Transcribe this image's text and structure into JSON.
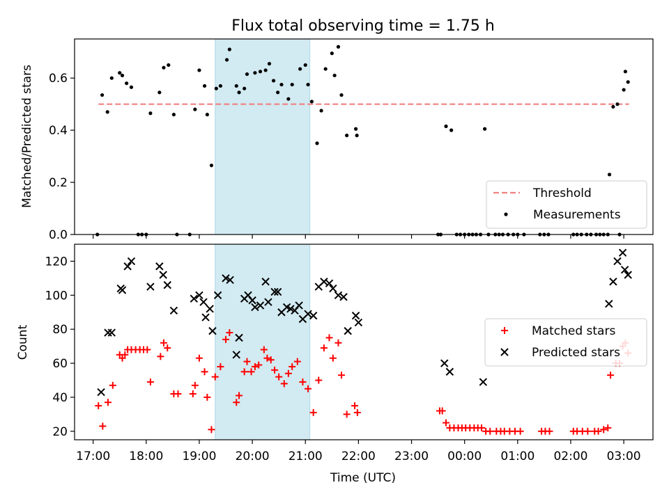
{
  "title": "Flux total observing time = 1.75 h",
  "xlabel": "Time (UTC)",
  "x_ticks": [
    "17:00",
    "18:00",
    "19:00",
    "20:00",
    "21:00",
    "22:00",
    "23:00",
    "00:00",
    "01:00",
    "02:00",
    "03:00"
  ],
  "shade_color": "#add8e6",
  "chart_data": [
    {
      "type": "scatter",
      "ylabel": "Matched/Predicted stars",
      "ylim": [
        0,
        0.75
      ],
      "y_ticks": [
        "0.0",
        "0.2",
        "0.4",
        "0.6"
      ],
      "x_unit": "hours since 17:00 UTC",
      "xlim": [
        -0.35,
        10.55
      ],
      "shaded_interval": [
        "19:18",
        "21:05"
      ],
      "threshold": {
        "name": "Threshold",
        "y": 0.5,
        "x_range": [
          0.1,
          10.1
        ],
        "color": "#f08080",
        "style": "dashed"
      },
      "legend": {
        "placement": "lower right",
        "entries": [
          "Threshold",
          "Measurements"
        ]
      },
      "series": [
        {
          "name": "Measurements",
          "color": "#000000",
          "marker": "dot",
          "points": [
            [
              0.08,
              0.0
            ],
            [
              0.17,
              0.535
            ],
            [
              0.27,
              0.47
            ],
            [
              0.35,
              0.6
            ],
            [
              0.5,
              0.62
            ],
            [
              0.55,
              0.61
            ],
            [
              0.63,
              0.58
            ],
            [
              0.72,
              0.565
            ],
            [
              0.85,
              0.0
            ],
            [
              0.92,
              0.0
            ],
            [
              1.0,
              0.0
            ],
            [
              1.08,
              0.465
            ],
            [
              1.25,
              0.545
            ],
            [
              1.33,
              0.64
            ],
            [
              1.42,
              0.65
            ],
            [
              1.52,
              0.46
            ],
            [
              1.58,
              0.0
            ],
            [
              1.82,
              0.0
            ],
            [
              1.92,
              0.48
            ],
            [
              2.0,
              0.63
            ],
            [
              2.1,
              0.57
            ],
            [
              2.15,
              0.46
            ],
            [
              2.23,
              0.265
            ],
            [
              2.32,
              0.56
            ],
            [
              2.4,
              0.57
            ],
            [
              2.52,
              0.67
            ],
            [
              2.57,
              0.71
            ],
            [
              2.7,
              0.57
            ],
            [
              2.75,
              0.545
            ],
            [
              2.85,
              0.56
            ],
            [
              2.9,
              0.615
            ],
            [
              3.05,
              0.62
            ],
            [
              3.15,
              0.625
            ],
            [
              3.25,
              0.63
            ],
            [
              3.32,
              0.655
            ],
            [
              3.4,
              0.59
            ],
            [
              3.48,
              0.545
            ],
            [
              3.55,
              0.575
            ],
            [
              3.68,
              0.52
            ],
            [
              3.75,
              0.575
            ],
            [
              3.9,
              0.635
            ],
            [
              4.0,
              0.65
            ],
            [
              4.05,
              0.575
            ],
            [
              4.12,
              0.51
            ],
            [
              4.22,
              0.35
            ],
            [
              4.3,
              0.475
            ],
            [
              4.38,
              0.635
            ],
            [
              4.5,
              0.695
            ],
            [
              4.55,
              0.61
            ],
            [
              4.62,
              0.72
            ],
            [
              4.68,
              0.535
            ],
            [
              4.78,
              0.38
            ],
            [
              4.95,
              0.405
            ],
            [
              4.97,
              0.38
            ],
            [
              6.5,
              0.0
            ],
            [
              6.55,
              0.0
            ],
            [
              6.65,
              0.415
            ],
            [
              6.75,
              0.4
            ],
            [
              6.85,
              0.0
            ],
            [
              6.92,
              0.0
            ],
            [
              7.0,
              0.0
            ],
            [
              7.08,
              0.0
            ],
            [
              7.15,
              0.0
            ],
            [
              7.22,
              0.0
            ],
            [
              7.3,
              0.0
            ],
            [
              7.38,
              0.405
            ],
            [
              7.45,
              0.0
            ],
            [
              7.58,
              0.0
            ],
            [
              7.65,
              0.0
            ],
            [
              7.72,
              0.0
            ],
            [
              7.82,
              0.0
            ],
            [
              7.92,
              0.0
            ],
            [
              8.0,
              0.0
            ],
            [
              8.12,
              0.0
            ],
            [
              8.42,
              0.0
            ],
            [
              8.5,
              0.0
            ],
            [
              8.58,
              0.0
            ],
            [
              9.05,
              0.0
            ],
            [
              9.12,
              0.0
            ],
            [
              9.2,
              0.0
            ],
            [
              9.3,
              0.0
            ],
            [
              9.38,
              0.0
            ],
            [
              9.48,
              0.0
            ],
            [
              9.55,
              0.0
            ],
            [
              9.62,
              0.0
            ],
            [
              9.7,
              0.0
            ],
            [
              9.73,
              0.23
            ],
            [
              9.8,
              0.49
            ],
            [
              9.88,
              0.5
            ],
            [
              9.92,
              0.0
            ],
            [
              10.0,
              0.555
            ],
            [
              10.03,
              0.625
            ],
            [
              10.08,
              0.585
            ]
          ]
        }
      ]
    },
    {
      "type": "scatter",
      "ylabel": "Count",
      "ylim": [
        15,
        130
      ],
      "y_ticks": [
        "20",
        "40",
        "60",
        "80",
        "100",
        "120"
      ],
      "x_unit": "hours since 17:00 UTC",
      "xlim": [
        -0.35,
        10.55
      ],
      "shaded_interval": [
        "19:18",
        "21:05"
      ],
      "legend": {
        "placement": "center right",
        "entries": [
          "Matched stars",
          "Predicted stars"
        ]
      },
      "series": [
        {
          "name": "Matched stars",
          "color": "#ff0000",
          "marker": "plus",
          "points": [
            [
              0.1,
              35
            ],
            [
              0.18,
              23
            ],
            [
              0.28,
              37
            ],
            [
              0.37,
              47
            ],
            [
              0.5,
              65
            ],
            [
              0.55,
              63
            ],
            [
              0.6,
              65
            ],
            [
              0.65,
              68
            ],
            [
              0.72,
              68
            ],
            [
              0.8,
              68
            ],
            [
              0.88,
              68
            ],
            [
              0.95,
              68
            ],
            [
              1.02,
              68
            ],
            [
              1.08,
              49
            ],
            [
              1.27,
              64
            ],
            [
              1.33,
              72
            ],
            [
              1.4,
              69
            ],
            [
              1.52,
              42
            ],
            [
              1.6,
              42
            ],
            [
              1.88,
              42
            ],
            [
              1.92,
              47
            ],
            [
              2.0,
              63
            ],
            [
              2.1,
              55
            ],
            [
              2.15,
              40
            ],
            [
              2.23,
              21
            ],
            [
              2.3,
              52
            ],
            [
              2.4,
              58
            ],
            [
              2.5,
              74
            ],
            [
              2.57,
              78
            ],
            [
              2.7,
              37
            ],
            [
              2.75,
              41
            ],
            [
              2.85,
              55
            ],
            [
              2.9,
              61
            ],
            [
              2.98,
              55
            ],
            [
              3.05,
              58
            ],
            [
              3.12,
              59
            ],
            [
              3.22,
              68
            ],
            [
              3.28,
              63
            ],
            [
              3.35,
              62
            ],
            [
              3.42,
              56
            ],
            [
              3.5,
              52
            ],
            [
              3.6,
              48
            ],
            [
              3.68,
              54
            ],
            [
              3.75,
              58
            ],
            [
              3.85,
              61
            ],
            [
              3.95,
              49
            ],
            [
              4.05,
              45
            ],
            [
              4.15,
              31
            ],
            [
              4.25,
              50
            ],
            [
              4.35,
              69
            ],
            [
              4.45,
              75
            ],
            [
              4.52,
              63
            ],
            [
              4.62,
              72
            ],
            [
              4.68,
              53
            ],
            [
              4.78,
              30
            ],
            [
              4.93,
              35
            ],
            [
              4.98,
              31
            ],
            [
              6.53,
              32
            ],
            [
              6.58,
              32
            ],
            [
              6.65,
              25
            ],
            [
              6.72,
              22
            ],
            [
              6.8,
              22
            ],
            [
              6.88,
              22
            ],
            [
              6.95,
              22
            ],
            [
              7.02,
              22
            ],
            [
              7.1,
              22
            ],
            [
              7.18,
              22
            ],
            [
              7.25,
              22
            ],
            [
              7.32,
              22
            ],
            [
              7.4,
              20
            ],
            [
              7.48,
              20
            ],
            [
              7.6,
              20
            ],
            [
              7.68,
              20
            ],
            [
              7.75,
              20
            ],
            [
              7.85,
              20
            ],
            [
              7.95,
              20
            ],
            [
              8.05,
              20
            ],
            [
              8.45,
              20
            ],
            [
              8.52,
              20
            ],
            [
              8.6,
              20
            ],
            [
              9.05,
              20
            ],
            [
              9.12,
              20
            ],
            [
              9.22,
              20
            ],
            [
              9.32,
              20
            ],
            [
              9.45,
              20
            ],
            [
              9.52,
              20
            ],
            [
              9.62,
              21
            ],
            [
              9.7,
              22
            ],
            [
              9.75,
              53
            ],
            [
              9.85,
              60
            ],
            [
              9.92,
              60
            ],
            [
              9.98,
              70
            ],
            [
              10.03,
              72
            ],
            [
              10.08,
              66
            ]
          ]
        },
        {
          "name": "Predicted stars",
          "color": "#000000",
          "marker": "cross",
          "points": [
            [
              0.15,
              43
            ],
            [
              0.28,
              78
            ],
            [
              0.35,
              78
            ],
            [
              0.52,
              104
            ],
            [
              0.55,
              103
            ],
            [
              0.65,
              117
            ],
            [
              0.72,
              120
            ],
            [
              1.08,
              105
            ],
            [
              1.25,
              117
            ],
            [
              1.32,
              112
            ],
            [
              1.4,
              106
            ],
            [
              1.52,
              91
            ],
            [
              1.9,
              98
            ],
            [
              2.0,
              100
            ],
            [
              2.08,
              96
            ],
            [
              2.12,
              87
            ],
            [
              2.2,
              92
            ],
            [
              2.25,
              79
            ],
            [
              2.35,
              100
            ],
            [
              2.5,
              110
            ],
            [
              2.58,
              109
            ],
            [
              2.7,
              65
            ],
            [
              2.75,
              75
            ],
            [
              2.85,
              98
            ],
            [
              2.92,
              100
            ],
            [
              3.0,
              97
            ],
            [
              3.05,
              93
            ],
            [
              3.15,
              94
            ],
            [
              3.25,
              108
            ],
            [
              3.3,
              96
            ],
            [
              3.42,
              102
            ],
            [
              3.48,
              102
            ],
            [
              3.55,
              90
            ],
            [
              3.65,
              93
            ],
            [
              3.72,
              92
            ],
            [
              3.8,
              91
            ],
            [
              3.88,
              94
            ],
            [
              3.95,
              86
            ],
            [
              4.05,
              89
            ],
            [
              4.15,
              88
            ],
            [
              4.25,
              105
            ],
            [
              4.35,
              108
            ],
            [
              4.45,
              107
            ],
            [
              4.52,
              104
            ],
            [
              4.62,
              100
            ],
            [
              4.72,
              99
            ],
            [
              4.8,
              79
            ],
            [
              4.95,
              88
            ],
            [
              5.0,
              84
            ],
            [
              6.62,
              60
            ],
            [
              6.72,
              55
            ],
            [
              7.35,
              49
            ],
            [
              9.72,
              95
            ],
            [
              9.8,
              108
            ],
            [
              9.88,
              120
            ],
            [
              9.98,
              125
            ],
            [
              10.02,
              115
            ],
            [
              10.08,
              112
            ]
          ]
        }
      ]
    }
  ]
}
